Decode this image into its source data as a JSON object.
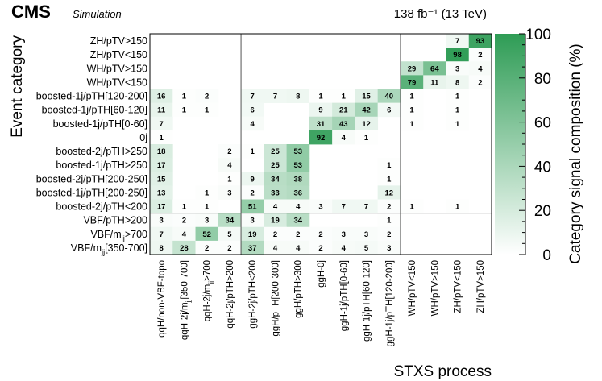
{
  "header": {
    "experiment": "CMS",
    "subtitle": "Simulation",
    "lumi": "138 fb⁻¹ (13 TeV)"
  },
  "chart_data": {
    "type": "heatmap",
    "title": "",
    "xlabel": "STXS process",
    "ylabel": "Event category",
    "zlabel": "Category signal composition (%)",
    "zlim": [
      0,
      100
    ],
    "colorbar_ticks": [
      "0",
      "20",
      "40",
      "60",
      "80",
      "100"
    ],
    "colorbar_ticks_values": [
      0,
      20,
      40,
      60,
      80,
      100
    ],
    "x_categories": [
      "qqH/non-VBF-topo",
      "qqH-2j/m_jj[350-700]",
      "qqH-2j/m_jj>700",
      "qqH-2j/pTH>200",
      "ggH-2j/pTH<200",
      "ggH/pTH[200-300]",
      "ggH/pTH>300",
      "ggH-0j",
      "ggH-1j/pTH[0-60]",
      "ggH-1j/pTH[60-120]",
      "ggH-1j/pTH[120-200]",
      "WH/pTV<150",
      "WH/pTV>150",
      "ZH/pTV<150",
      "ZH/pTV>150"
    ],
    "y_categories": [
      "ZH/pTV>150",
      "ZH/pTV<150",
      "WH/pTV>150",
      "WH/pTV<150",
      "boosted-1j/pTH[120-200]",
      "boosted-1j/pTH[60-120]",
      "boosted-1j/pTH[0-60]",
      "0j",
      "boosted-2j/pTH>250",
      "boosted-1j/pTH>250",
      "boosted-2j/pTH[200-250]",
      "boosted-1j/pTH[200-250]",
      "boosted-2j/pTH<200",
      "VBF/pTH>200",
      "VBF/m_jj>700",
      "VBF/m_jj[350-700]"
    ],
    "group_dividers_x_after_index": [
      3,
      10
    ],
    "group_dividers_y_after_index": [
      3,
      12
    ],
    "values": [
      [
        null,
        null,
        null,
        null,
        null,
        null,
        null,
        null,
        null,
        null,
        null,
        null,
        null,
        7,
        93
      ],
      [
        null,
        null,
        null,
        null,
        null,
        null,
        null,
        null,
        null,
        null,
        null,
        null,
        null,
        98,
        2
      ],
      [
        null,
        null,
        null,
        null,
        null,
        null,
        null,
        null,
        null,
        null,
        null,
        29,
        64,
        3,
        4
      ],
      [
        null,
        null,
        null,
        null,
        null,
        null,
        null,
        null,
        null,
        null,
        null,
        79,
        11,
        8,
        2
      ],
      [
        16,
        1,
        2,
        null,
        7,
        7,
        8,
        1,
        1,
        15,
        40,
        1,
        null,
        1,
        null
      ],
      [
        11,
        1,
        1,
        null,
        6,
        null,
        null,
        9,
        21,
        42,
        6,
        1,
        null,
        1,
        null
      ],
      [
        7,
        null,
        null,
        null,
        4,
        null,
        null,
        31,
        43,
        12,
        null,
        1,
        null,
        1,
        null
      ],
      [
        1,
        null,
        null,
        null,
        null,
        null,
        null,
        92,
        4,
        1,
        null,
        null,
        null,
        null,
        null
      ],
      [
        18,
        null,
        null,
        2,
        1,
        25,
        53,
        null,
        null,
        null,
        null,
        null,
        null,
        null,
        null
      ],
      [
        17,
        null,
        null,
        4,
        null,
        25,
        53,
        null,
        null,
        null,
        1,
        null,
        null,
        null,
        null
      ],
      [
        15,
        null,
        null,
        1,
        9,
        34,
        38,
        null,
        null,
        null,
        1,
        null,
        null,
        null,
        null
      ],
      [
        13,
        null,
        1,
        3,
        2,
        33,
        36,
        null,
        null,
        null,
        12,
        null,
        null,
        null,
        null
      ],
      [
        17,
        1,
        1,
        null,
        51,
        4,
        4,
        3,
        7,
        7,
        2,
        1,
        null,
        1,
        null
      ],
      [
        3,
        2,
        3,
        34,
        3,
        19,
        34,
        null,
        null,
        null,
        1,
        null,
        null,
        null,
        null
      ],
      [
        7,
        4,
        52,
        5,
        19,
        2,
        2,
        2,
        3,
        3,
        2,
        null,
        null,
        null,
        null
      ],
      [
        8,
        28,
        2,
        2,
        37,
        4,
        4,
        2,
        4,
        5,
        3,
        null,
        null,
        null,
        null
      ]
    ]
  }
}
